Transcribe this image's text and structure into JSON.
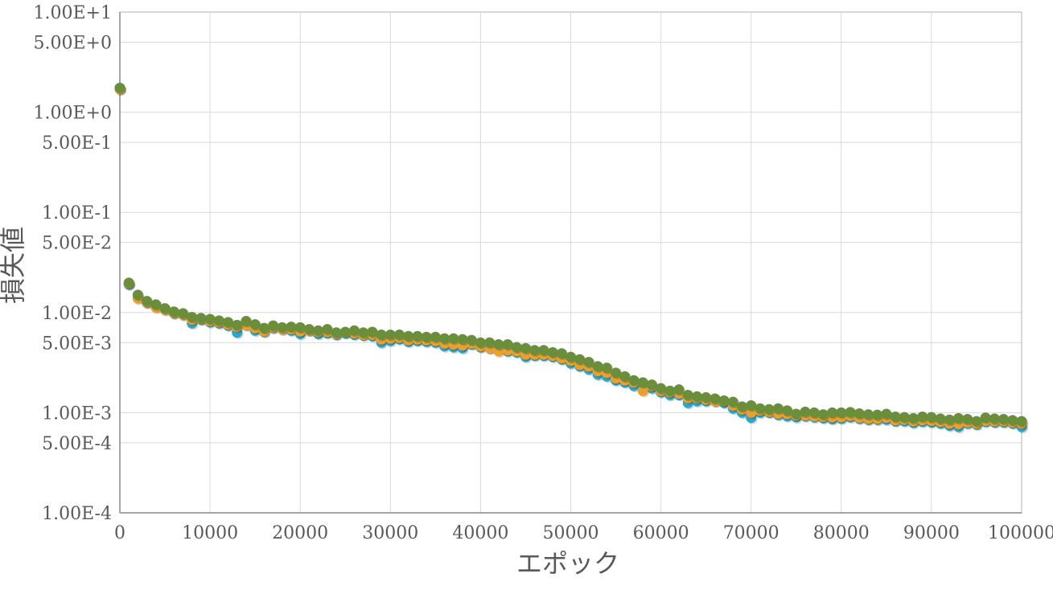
{
  "chart_data": {
    "type": "scatter",
    "title": "",
    "xlabel": "エポック",
    "ylabel": "損失値",
    "xlim": [
      0,
      100000
    ],
    "ylim": [
      0.0001,
      10
    ],
    "y_scale": "log",
    "grid": true,
    "legend": "none",
    "x_ticks": [
      0,
      10000,
      20000,
      30000,
      40000,
      50000,
      60000,
      70000,
      80000,
      90000,
      100000
    ],
    "x_tick_labels": [
      "0",
      "10000",
      "20000",
      "30000",
      "40000",
      "50000",
      "60000",
      "70000",
      "80000",
      "90000",
      "100000"
    ],
    "y_ticks": [
      10,
      5,
      1,
      0.5,
      0.1,
      0.05,
      0.01,
      0.005,
      0.001,
      0.0005,
      0.0001
    ],
    "y_tick_labels": [
      "1.00E+1",
      "5.00E+0",
      "1.00E+0",
      "5.00E-1",
      "1.00E-1",
      "5.00E-2",
      "1.00E-2",
      "5.00E-3",
      "1.00E-3",
      "5.00E-4",
      "1.00E-4"
    ],
    "series": [
      {
        "color": "#2fa5c8",
        "x": [
          0,
          1000,
          2000,
          3000,
          4000,
          5000,
          6000,
          7000,
          8000,
          9000,
          10000,
          11000,
          12000,
          13000,
          14000,
          15000,
          16000,
          17000,
          18000,
          19000,
          20000,
          21000,
          22000,
          23000,
          24000,
          25000,
          26000,
          27000,
          28000,
          29000,
          30000,
          31000,
          32000,
          33000,
          34000,
          35000,
          36000,
          37000,
          38000,
          39000,
          40000,
          41000,
          42000,
          43000,
          44000,
          45000,
          46000,
          47000,
          48000,
          49000,
          50000,
          51000,
          52000,
          53000,
          54000,
          55000,
          56000,
          57000,
          58000,
          59000,
          60000,
          61000,
          62000,
          63000,
          64000,
          65000,
          66000,
          67000,
          68000,
          69000,
          70000,
          71000,
          72000,
          73000,
          74000,
          75000,
          76000,
          77000,
          78000,
          79000,
          80000,
          81000,
          82000,
          83000,
          84000,
          85000,
          86000,
          87000,
          88000,
          89000,
          90000,
          91000,
          92000,
          93000,
          94000,
          95000,
          96000,
          97000,
          98000,
          99000,
          100000
        ],
        "y": [
          1.7,
          0.019,
          0.0142,
          0.0125,
          0.0115,
          0.0108,
          0.0098,
          0.0095,
          0.0078,
          0.0085,
          0.008,
          0.0078,
          0.0074,
          0.0063,
          0.0075,
          0.0066,
          0.0064,
          0.007,
          0.0068,
          0.0066,
          0.0061,
          0.0066,
          0.0061,
          0.0062,
          0.006,
          0.0062,
          0.006,
          0.0059,
          0.0058,
          0.005,
          0.0052,
          0.0054,
          0.0051,
          0.0052,
          0.0051,
          0.005,
          0.0046,
          0.0045,
          0.0044,
          0.0048,
          0.0045,
          0.0044,
          0.0043,
          0.0041,
          0.004,
          0.0036,
          0.0037,
          0.0037,
          0.0036,
          0.0034,
          0.0031,
          0.0029,
          0.0027,
          0.0024,
          0.0023,
          0.0021,
          0.002,
          0.00185,
          0.0018,
          0.00175,
          0.0016,
          0.0015,
          0.0015,
          0.00125,
          0.0013,
          0.0013,
          0.0013,
          0.00125,
          0.0011,
          0.001,
          0.00089,
          0.001,
          0.001,
          0.00095,
          0.00092,
          0.0009,
          0.00092,
          0.0009,
          0.00088,
          0.00086,
          0.00087,
          0.0009,
          0.00087,
          0.00085,
          0.00085,
          0.00085,
          0.00082,
          0.00082,
          0.00079,
          0.00081,
          0.0008,
          0.00078,
          0.00074,
          0.00072,
          0.00078,
          0.00076,
          0.00081,
          0.0008,
          0.0008,
          0.00078,
          0.00072
        ]
      },
      {
        "color": "#e8a030",
        "x": [
          0,
          1000,
          2000,
          3000,
          4000,
          5000,
          6000,
          7000,
          8000,
          9000,
          10000,
          11000,
          12000,
          13000,
          14000,
          15000,
          16000,
          17000,
          18000,
          19000,
          20000,
          21000,
          22000,
          23000,
          24000,
          25000,
          26000,
          27000,
          28000,
          29000,
          30000,
          31000,
          32000,
          33000,
          34000,
          35000,
          36000,
          37000,
          38000,
          39000,
          40000,
          41000,
          42000,
          43000,
          44000,
          45000,
          46000,
          47000,
          48000,
          49000,
          50000,
          51000,
          52000,
          53000,
          54000,
          55000,
          56000,
          57000,
          58000,
          59000,
          60000,
          61000,
          62000,
          63000,
          64000,
          65000,
          66000,
          67000,
          68000,
          69000,
          70000,
          71000,
          72000,
          73000,
          74000,
          75000,
          76000,
          77000,
          78000,
          79000,
          80000,
          81000,
          82000,
          83000,
          84000,
          85000,
          86000,
          87000,
          88000,
          89000,
          90000,
          91000,
          92000,
          93000,
          94000,
          95000,
          96000,
          97000,
          98000,
          99000,
          100000
        ],
        "y": [
          1.7,
          0.0195,
          0.0138,
          0.0126,
          0.0112,
          0.0106,
          0.0099,
          0.0095,
          0.0085,
          0.0086,
          0.0082,
          0.008,
          0.0076,
          0.0072,
          0.0075,
          0.007,
          0.0065,
          0.0071,
          0.0068,
          0.0068,
          0.0065,
          0.0066,
          0.0064,
          0.0064,
          0.0061,
          0.0063,
          0.0062,
          0.006,
          0.006,
          0.0054,
          0.0055,
          0.0056,
          0.0053,
          0.0054,
          0.0053,
          0.0052,
          0.0049,
          0.0048,
          0.0047,
          0.0049,
          0.0046,
          0.0044,
          0.0041,
          0.0042,
          0.0041,
          0.0038,
          0.0038,
          0.0038,
          0.0037,
          0.0035,
          0.0033,
          0.003,
          0.0029,
          0.0026,
          0.0025,
          0.0022,
          0.0021,
          0.002,
          0.00165,
          0.00185,
          0.00165,
          0.0016,
          0.00155,
          0.0014,
          0.0014,
          0.00135,
          0.0013,
          0.0013,
          0.00118,
          0.00108,
          0.001,
          0.00105,
          0.00102,
          0.00098,
          0.00097,
          0.00094,
          0.00094,
          0.00092,
          0.00091,
          0.0009,
          0.0009,
          0.00093,
          0.00089,
          0.00087,
          0.00087,
          0.00089,
          0.00084,
          0.00085,
          0.00082,
          0.00084,
          0.00083,
          0.00081,
          0.00078,
          0.00077,
          0.0008,
          0.00078,
          0.00083,
          0.00082,
          0.00082,
          0.0008,
          0.00078
        ]
      },
      {
        "color": "#6b8e3a",
        "x": [
          0,
          1000,
          2000,
          3000,
          4000,
          5000,
          6000,
          7000,
          8000,
          9000,
          10000,
          11000,
          12000,
          13000,
          14000,
          15000,
          16000,
          17000,
          18000,
          19000,
          20000,
          21000,
          22000,
          23000,
          24000,
          25000,
          26000,
          27000,
          28000,
          29000,
          30000,
          31000,
          32000,
          33000,
          34000,
          35000,
          36000,
          37000,
          38000,
          39000,
          40000,
          41000,
          42000,
          43000,
          44000,
          45000,
          46000,
          47000,
          48000,
          49000,
          50000,
          51000,
          52000,
          53000,
          54000,
          55000,
          56000,
          57000,
          58000,
          59000,
          60000,
          61000,
          62000,
          63000,
          64000,
          65000,
          66000,
          67000,
          68000,
          69000,
          70000,
          71000,
          72000,
          73000,
          74000,
          75000,
          76000,
          77000,
          78000,
          79000,
          80000,
          81000,
          82000,
          83000,
          84000,
          85000,
          86000,
          87000,
          88000,
          89000,
          90000,
          91000,
          92000,
          93000,
          94000,
          95000,
          96000,
          97000,
          98000,
          99000,
          100000
        ],
        "y": [
          1.75,
          0.0198,
          0.015,
          0.013,
          0.012,
          0.011,
          0.0102,
          0.0098,
          0.009,
          0.0088,
          0.0086,
          0.0083,
          0.008,
          0.0075,
          0.0082,
          0.0076,
          0.007,
          0.0074,
          0.0071,
          0.0072,
          0.0071,
          0.0068,
          0.0066,
          0.0068,
          0.0063,
          0.0064,
          0.0066,
          0.0063,
          0.0064,
          0.006,
          0.006,
          0.006,
          0.0058,
          0.0058,
          0.0057,
          0.0057,
          0.0055,
          0.0055,
          0.0054,
          0.0053,
          0.005,
          0.005,
          0.0048,
          0.0048,
          0.0045,
          0.0044,
          0.0042,
          0.0042,
          0.004,
          0.0039,
          0.0036,
          0.0034,
          0.0032,
          0.0029,
          0.0028,
          0.0025,
          0.0023,
          0.0021,
          0.002,
          0.0019,
          0.00175,
          0.00165,
          0.0017,
          0.0015,
          0.00145,
          0.00142,
          0.00138,
          0.00132,
          0.00128,
          0.00115,
          0.00118,
          0.0011,
          0.00108,
          0.0011,
          0.00105,
          0.00097,
          0.00102,
          0.001,
          0.00096,
          0.001,
          0.001,
          0.00101,
          0.00098,
          0.00096,
          0.00095,
          0.00097,
          0.00091,
          0.0009,
          0.00088,
          0.00091,
          0.0009,
          0.00087,
          0.00085,
          0.00088,
          0.00086,
          0.00082,
          0.00089,
          0.00087,
          0.00086,
          0.00084,
          0.00082
        ]
      }
    ]
  }
}
